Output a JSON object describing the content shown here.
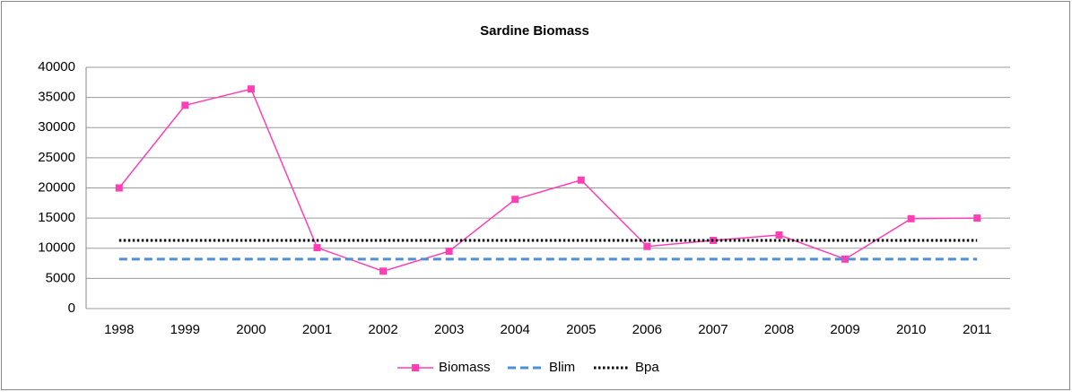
{
  "chart_data": {
    "type": "line",
    "title": "Sardine Biomass",
    "categories": [
      "1998",
      "1999",
      "2000",
      "2001",
      "2002",
      "2003",
      "2004",
      "2005",
      "2006",
      "2007",
      "2008",
      "2009",
      "2010",
      "2011"
    ],
    "series": [
      {
        "name": "Biomass",
        "color": "#ff3fb4",
        "style": "solid",
        "marker": "square",
        "values": [
          20000,
          33700,
          36400,
          10100,
          6200,
          9500,
          18100,
          21300,
          10300,
          11300,
          12200,
          8200,
          14900,
          15000
        ]
      },
      {
        "name": "Blim",
        "color": "#4f8fd6",
        "style": "dashed",
        "values": [
          8200,
          8200,
          8200,
          8200,
          8200,
          8200,
          8200,
          8200,
          8200,
          8200,
          8200,
          8200,
          8200,
          8200
        ]
      },
      {
        "name": "Bpa",
        "color": "#000000",
        "style": "dotted",
        "values": [
          11300,
          11300,
          11300,
          11300,
          11300,
          11300,
          11300,
          11300,
          11300,
          11300,
          11300,
          11300,
          11300,
          11300
        ]
      }
    ],
    "ylim": [
      0,
      40000
    ],
    "yticks": [
      0,
      5000,
      10000,
      15000,
      20000,
      25000,
      30000,
      35000,
      40000
    ],
    "grid": true,
    "legend": "bottom"
  }
}
